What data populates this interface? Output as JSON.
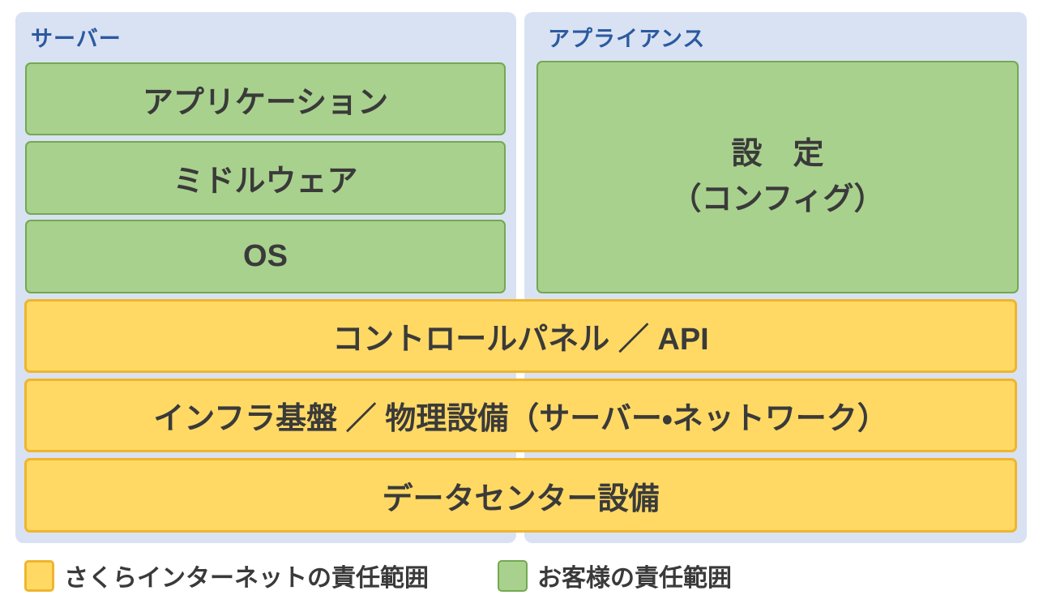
{
  "colors": {
    "panel_bg": "#d9e2f3",
    "green_fill": "#a9d18e",
    "green_border": "#73a950",
    "yellow_fill": "#ffd964",
    "yellow_border": "#efb52d",
    "panel_title_blue": "#2b5aa0",
    "box_text": "#3a3a3a",
    "page_bg": "#ffffff"
  },
  "panels": {
    "server": {
      "title": "サーバー",
      "boxes": [
        "アプリケーション",
        "ミドルウェア",
        "OS"
      ]
    },
    "appliance": {
      "title": "アプライアンス",
      "box_line1": "設　定",
      "box_line2": "（コンフィグ）"
    }
  },
  "shared_rows": [
    "コントロールパネル ／ API",
    "インフラ基盤 ／ 物理設備（サーバー・ネットワーク）",
    "データセンター設備"
  ],
  "legend": [
    {
      "swatch": "yellow",
      "label": "さくらインターネットの責任範囲"
    },
    {
      "swatch": "green",
      "label": "お客様の責任範囲"
    }
  ]
}
